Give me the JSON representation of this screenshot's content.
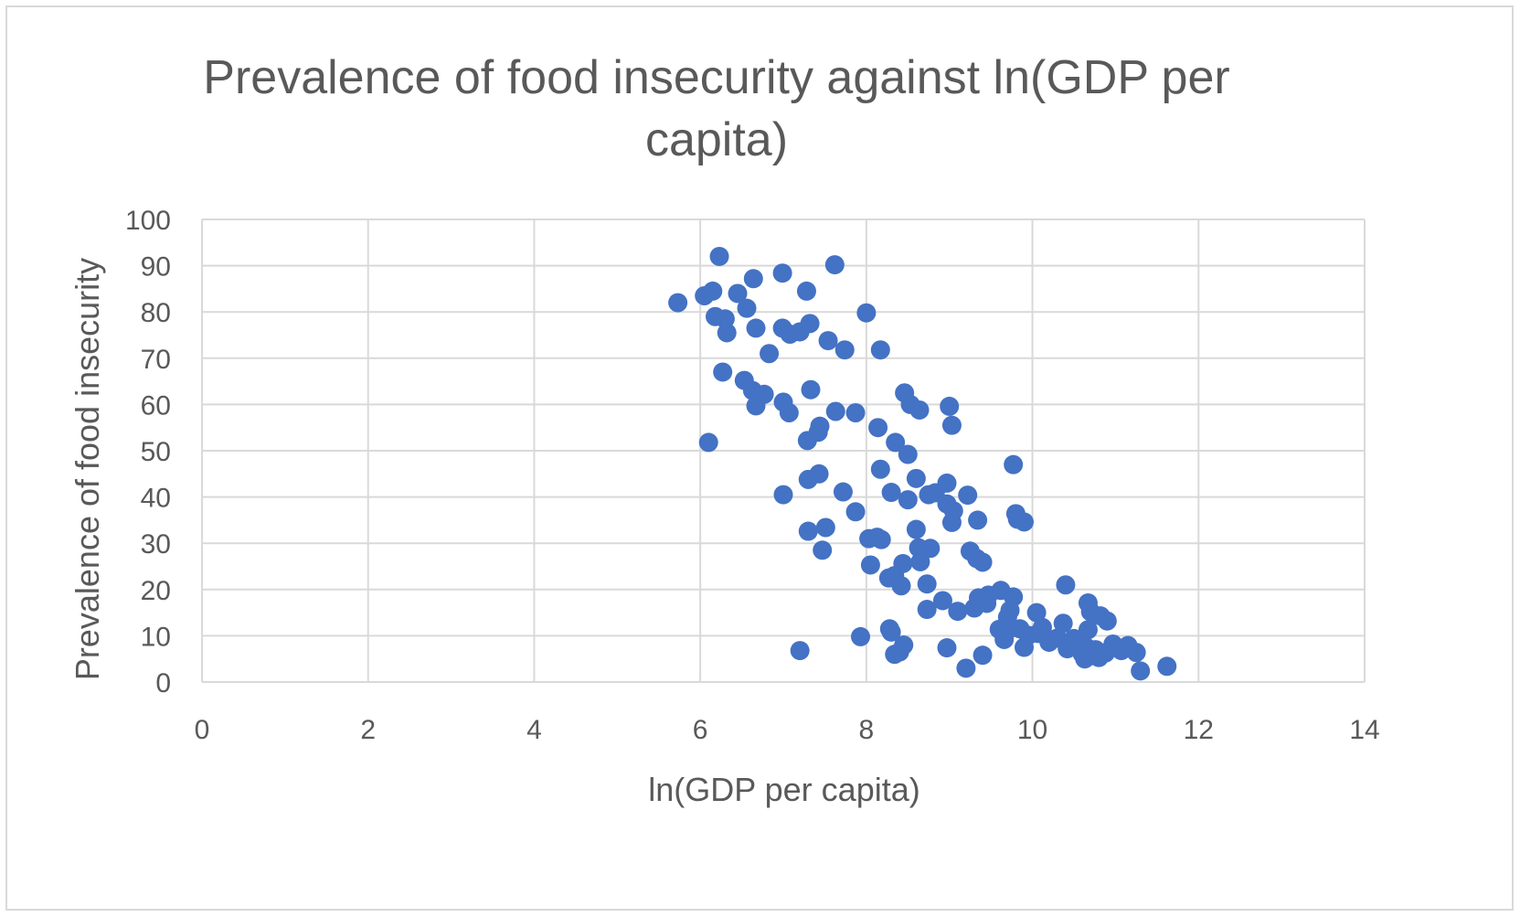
{
  "chart_data": {
    "type": "scatter",
    "title": "Prevalence of food insecurity against ln(GDP per capita)",
    "title_lines": [
      "Prevalence of food insecurity against ln(GDP per",
      "capita)"
    ],
    "xlabel": "ln(GDP per capita)",
    "ylabel": "Prevalence of food insecurity",
    "xlim": [
      0,
      14
    ],
    "ylim": [
      0,
      100
    ],
    "x_ticks": [
      0,
      2,
      4,
      6,
      8,
      10,
      12,
      14
    ],
    "y_ticks": [
      0,
      10,
      20,
      30,
      40,
      50,
      60,
      70,
      80,
      90,
      100
    ],
    "grid": true,
    "legend": "none",
    "series": [
      {
        "color": "#4472c4",
        "points": [
          [
            5.73,
            82
          ],
          [
            6.05,
            83.5
          ],
          [
            6.15,
            84.5
          ],
          [
            6.18,
            79
          ],
          [
            6.23,
            92
          ],
          [
            6.3,
            78.5
          ],
          [
            6.32,
            75.5
          ],
          [
            6.27,
            67
          ],
          [
            6.45,
            84
          ],
          [
            6.56,
            80.8
          ],
          [
            6.64,
            87.2
          ],
          [
            6.67,
            76.5
          ],
          [
            6.83,
            71
          ],
          [
            6.1,
            51.8
          ],
          [
            6.53,
            65.2
          ],
          [
            6.63,
            63
          ],
          [
            6.67,
            59.7
          ],
          [
            6.77,
            62.2
          ],
          [
            6.99,
            88.4
          ],
          [
            6.99,
            76.5
          ],
          [
            7.08,
            75.2
          ],
          [
            7.2,
            75.7
          ],
          [
            7.28,
            84.5
          ],
          [
            7.32,
            77.5
          ],
          [
            7.0,
            60.5
          ],
          [
            7.07,
            58.2
          ],
          [
            7.33,
            63.2
          ],
          [
            7.42,
            54
          ],
          [
            7.44,
            55.3
          ],
          [
            7.29,
            52.2
          ],
          [
            7.0,
            40.5
          ],
          [
            7.3,
            43.8
          ],
          [
            7.43,
            45
          ],
          [
            7.3,
            32.6
          ],
          [
            7.47,
            28.5
          ],
          [
            7.51,
            33.4
          ],
          [
            7.2,
            6.8
          ],
          [
            7.54,
            73.8
          ],
          [
            7.62,
            90.2
          ],
          [
            7.63,
            58.5
          ],
          [
            7.74,
            71.8
          ],
          [
            7.72,
            41.1
          ],
          [
            7.87,
            58.2
          ],
          [
            7.87,
            36.8
          ],
          [
            8.0,
            79.8
          ],
          [
            8.03,
            31
          ],
          [
            8.05,
            25.3
          ],
          [
            7.93,
            9.8
          ],
          [
            8.14,
            55
          ],
          [
            8.17,
            71.8
          ],
          [
            8.17,
            46
          ],
          [
            8.13,
            31.3
          ],
          [
            8.18,
            30.8
          ],
          [
            8.3,
            41
          ],
          [
            8.35,
            51.8
          ],
          [
            8.27,
            22.5
          ],
          [
            8.34,
            23
          ],
          [
            8.28,
            11.5
          ],
          [
            8.3,
            10.8
          ],
          [
            8.34,
            6
          ],
          [
            8.4,
            6.5
          ],
          [
            8.45,
            8
          ],
          [
            8.42,
            20.8
          ],
          [
            8.44,
            25.6
          ],
          [
            8.46,
            62.5
          ],
          [
            8.5,
            49.2
          ],
          [
            8.5,
            39.4
          ],
          [
            8.53,
            60
          ],
          [
            8.6,
            44
          ],
          [
            8.6,
            33
          ],
          [
            8.63,
            29
          ],
          [
            8.64,
            58.8
          ],
          [
            8.65,
            26
          ],
          [
            8.73,
            21.2
          ],
          [
            8.73,
            15.7
          ],
          [
            8.75,
            40.5
          ],
          [
            8.77,
            28.9
          ],
          [
            8.83,
            40.9
          ],
          [
            8.92,
            17.6
          ],
          [
            8.97,
            43
          ],
          [
            8.97,
            38.5
          ],
          [
            8.97,
            7.4
          ],
          [
            9.0,
            59.6
          ],
          [
            9.03,
            55.5
          ],
          [
            9.05,
            37
          ],
          [
            9.03,
            34.5
          ],
          [
            9.1,
            15.3
          ],
          [
            9.2,
            3
          ],
          [
            9.22,
            40.4
          ],
          [
            9.25,
            28.3
          ],
          [
            9.3,
            16
          ],
          [
            9.33,
            26.7
          ],
          [
            9.34,
            35
          ],
          [
            9.35,
            18.2
          ],
          [
            9.4,
            25.9
          ],
          [
            9.4,
            5.8
          ],
          [
            9.45,
            17
          ],
          [
            9.47,
            18.8
          ],
          [
            9.62,
            19.8
          ],
          [
            9.6,
            11.4
          ],
          [
            9.66,
            9.2
          ],
          [
            9.7,
            11.2
          ],
          [
            9.7,
            14
          ],
          [
            9.73,
            15.5
          ],
          [
            9.77,
            18.4
          ],
          [
            9.77,
            47
          ],
          [
            9.8,
            36.4
          ],
          [
            9.82,
            35.2
          ],
          [
            9.9,
            34.6
          ],
          [
            9.85,
            11.5
          ],
          [
            9.9,
            7.5
          ],
          [
            9.95,
            10.1
          ],
          [
            10.05,
            15
          ],
          [
            10.07,
            10.5
          ],
          [
            10.12,
            11.8
          ],
          [
            10.2,
            8.6
          ],
          [
            10.3,
            9.5
          ],
          [
            10.37,
            12.7
          ],
          [
            10.4,
            21
          ],
          [
            10.42,
            7.2
          ],
          [
            10.5,
            9.4
          ],
          [
            10.6,
            6.1
          ],
          [
            10.63,
            5
          ],
          [
            10.65,
            7.5
          ],
          [
            10.67,
            11.3
          ],
          [
            10.67,
            17.1
          ],
          [
            10.7,
            15.2
          ],
          [
            10.72,
            5.7
          ],
          [
            10.76,
            7
          ],
          [
            10.8,
            5.3
          ],
          [
            10.82,
            14.3
          ],
          [
            10.88,
            6.3
          ],
          [
            10.9,
            13.2
          ],
          [
            10.97,
            8.2
          ],
          [
            11.07,
            6.8
          ],
          [
            11.15,
            7.9
          ],
          [
            11.25,
            6.4
          ],
          [
            11.3,
            2.4
          ],
          [
            11.62,
            3.4
          ]
        ]
      }
    ]
  }
}
